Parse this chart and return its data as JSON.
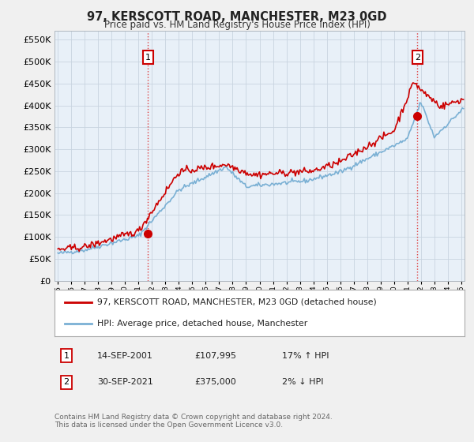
{
  "title": "97, KERSCOTT ROAD, MANCHESTER, M23 0GD",
  "subtitle": "Price paid vs. HM Land Registry's House Price Index (HPI)",
  "legend_line1": "97, KERSCOTT ROAD, MANCHESTER, M23 0GD (detached house)",
  "legend_line2": "HPI: Average price, detached house, Manchester",
  "footnote": "Contains HM Land Registry data © Crown copyright and database right 2024.\nThis data is licensed under the Open Government Licence v3.0.",
  "sale1_label": "1",
  "sale1_date": "14-SEP-2001",
  "sale1_price": "£107,995",
  "sale1_hpi": "17% ↑ HPI",
  "sale2_label": "2",
  "sale2_date": "30-SEP-2021",
  "sale2_price": "£375,000",
  "sale2_hpi": "2% ↓ HPI",
  "xmin": 1994.75,
  "xmax": 2025.25,
  "ymin": 0,
  "ymax": 570000,
  "yticks": [
    0,
    50000,
    100000,
    150000,
    200000,
    250000,
    300000,
    350000,
    400000,
    450000,
    500000,
    550000
  ],
  "sale_color": "#cc0000",
  "hpi_color": "#7ab0d4",
  "vline_color": "#dd2222",
  "background_color": "#f0f0f0",
  "plot_bg_color": "#e8f0f8",
  "grid_color": "#c8d4e0",
  "sale1_x": 2001.71,
  "sale1_y": 107995,
  "sale2_x": 2021.75,
  "sale2_y": 375000
}
